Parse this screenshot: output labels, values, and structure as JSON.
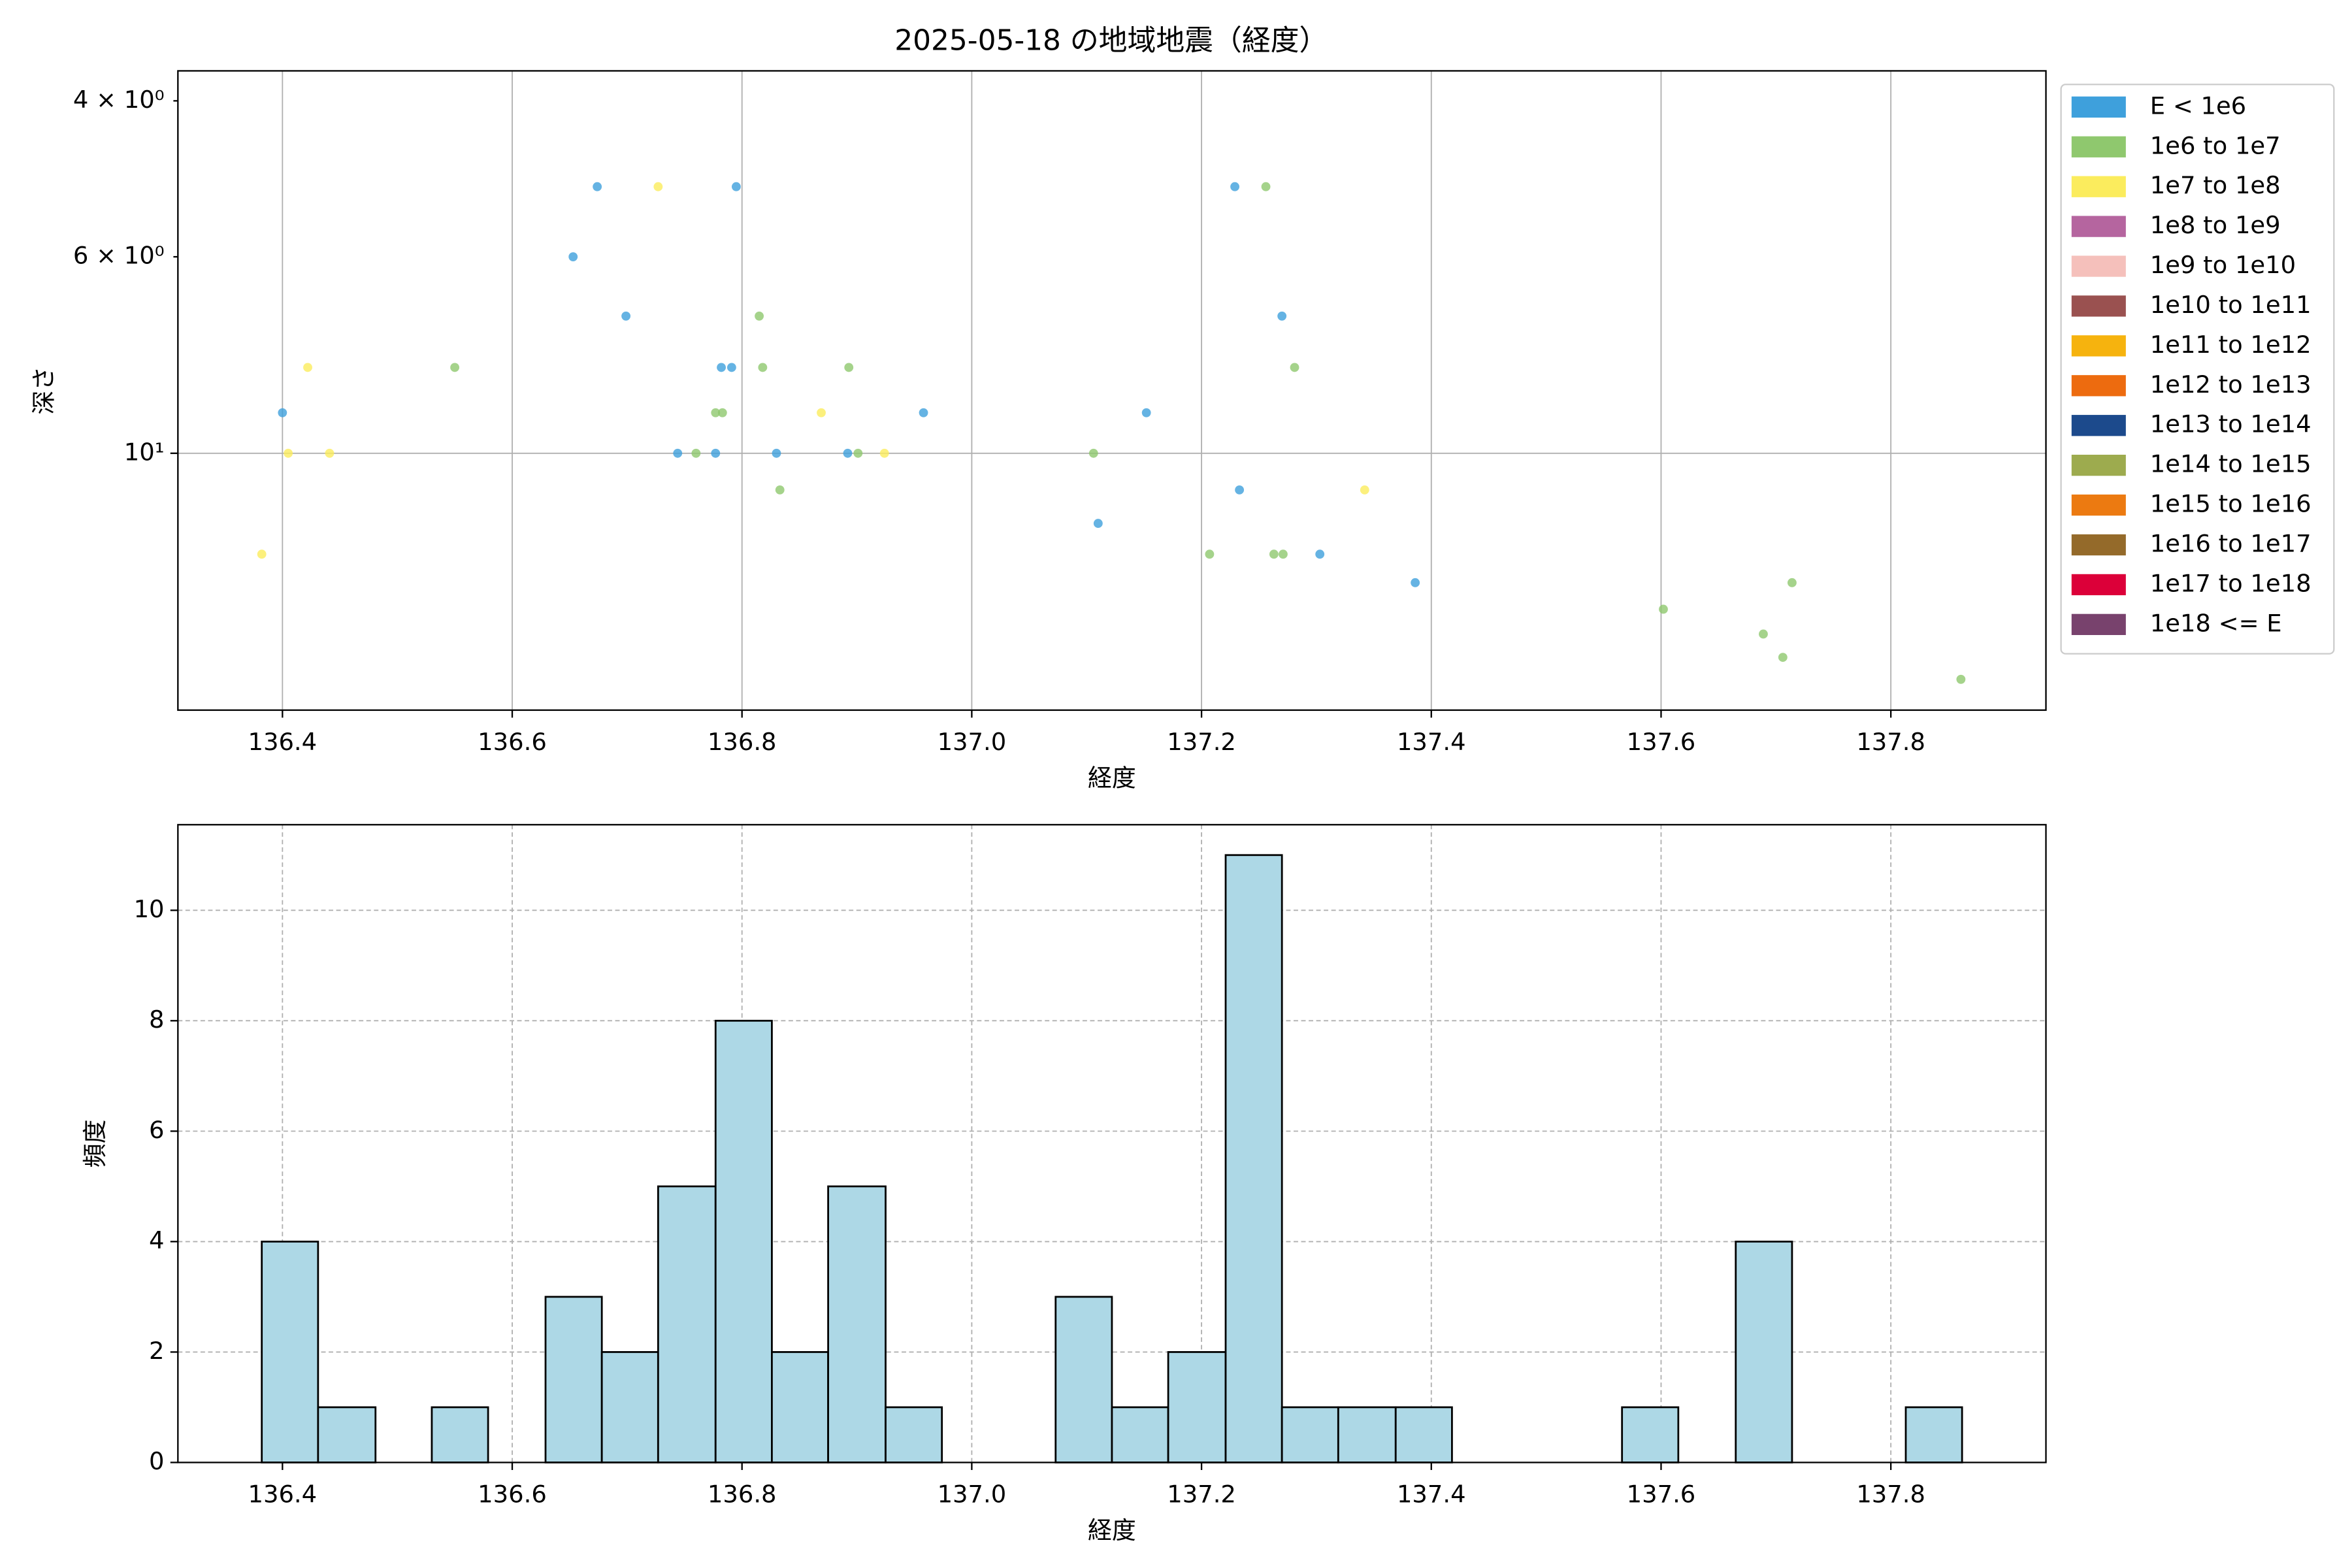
{
  "chart_data": [
    {
      "type": "scatter",
      "title": "2025-05-18 の地域地震（経度）",
      "x_label": "経度",
      "y_label": "深さ",
      "xlim": [
        136.309,
        137.935
      ],
      "xticks": [
        136.4,
        136.6,
        136.8,
        {
          "value": 137,
          "label": "137.0"
        },
        137.2,
        137.4,
        137.6,
        137.8
      ],
      "ylim": [
        19.5,
        3.7
      ],
      "y_scale": "log",
      "yticks": [
        {
          "value": 10,
          "label": "10¹"
        }
      ],
      "yminorticks": [
        {
          "value": 4,
          "label": "4 × 10⁰"
        },
        {
          "value": 6,
          "label": "6 × 10⁰"
        }
      ],
      "grid": true,
      "legend": "outside right",
      "series": [
        {
          "name": "E < 1e6",
          "color": "#3ea0dc",
          "x": [
            136.674,
            136.795,
            136.653,
            136.699,
            136.782,
            136.791,
            136.4,
            136.744,
            136.777,
            136.83,
            136.892,
            136.958,
            137.11,
            137.152,
            137.229,
            137.27,
            137.233,
            137.303,
            137.386
          ],
          "values": [
            5,
            5,
            6,
            7,
            8,
            8,
            9,
            10,
            10,
            10,
            10,
            9,
            12,
            9,
            5,
            7,
            11,
            13,
            14
          ]
        },
        {
          "name": "1e6 to 1e7",
          "color": "#8fc86e",
          "x": [
            136.55,
            136.76,
            136.777,
            136.783,
            136.815,
            136.818,
            136.833,
            136.893,
            136.901,
            137.106,
            137.256,
            137.281,
            137.207,
            137.263,
            137.271,
            137.602,
            137.689,
            137.706,
            137.714,
            137.861
          ],
          "values": [
            8,
            10,
            9,
            9,
            7,
            8,
            11,
            8,
            10,
            10,
            5,
            8,
            13,
            13,
            13,
            15,
            16,
            17,
            14,
            18
          ]
        },
        {
          "name": "1e7 to 1e8",
          "color": "#fbec5d",
          "x": [
            136.727,
            136.422,
            136.405,
            136.441,
            136.382,
            136.869,
            136.924,
            137.342
          ],
          "values": [
            5,
            8,
            10,
            10,
            13,
            9,
            10,
            11
          ]
        },
        {
          "name": "1e8 to 1e9",
          "color": "#b5659f",
          "x": [],
          "values": []
        },
        {
          "name": "1e9 to 1e10",
          "color": "#f5c0bb",
          "x": [],
          "values": []
        },
        {
          "name": "1e10 to 1e11",
          "color": "#9a5150",
          "x": [],
          "values": []
        },
        {
          "name": "1e11 to 1e12",
          "color": "#f6b30e",
          "x": [],
          "values": []
        },
        {
          "name": "1e12 to 1e13",
          "color": "#ed6b0f",
          "x": [],
          "values": []
        },
        {
          "name": "1e13 to 1e14",
          "color": "#1c4a8c",
          "x": [],
          "values": []
        },
        {
          "name": "1e14 to 1e15",
          "color": "#9dab4e",
          "x": [],
          "values": []
        },
        {
          "name": "1e15 to 1e16",
          "color": "#ec7a11",
          "x": [],
          "values": []
        },
        {
          "name": "1e16 to 1e17",
          "color": "#946a2a",
          "x": [],
          "values": []
        },
        {
          "name": "1e17 to 1e18",
          "color": "#dc0039",
          "x": [],
          "values": []
        },
        {
          "name": "1e18 <= E",
          "color": "#78426d",
          "x": [],
          "values": []
        }
      ]
    },
    {
      "type": "histogram",
      "x_label": "経度",
      "y_label": "頻度",
      "color": "#add8e6",
      "edge_color": "#000000",
      "xlim": [
        136.309,
        137.935
      ],
      "xticks": [
        136.4,
        136.6,
        136.8,
        {
          "value": 137,
          "label": "137.0"
        },
        137.2,
        137.4,
        137.6,
        137.8
      ],
      "ylim": [
        0,
        11.55
      ],
      "yticks": [
        0,
        2,
        4,
        6,
        8,
        10
      ],
      "grid": "dashed",
      "bins": [
        136.382,
        136.431,
        136.481,
        136.53,
        136.579,
        136.629,
        136.678,
        136.727,
        136.777,
        136.826,
        136.875,
        136.925,
        136.974,
        137.023,
        137.073,
        137.122,
        137.171,
        137.221,
        137.27,
        137.319,
        137.369,
        137.418,
        137.467,
        137.517,
        137.566,
        137.615,
        137.665,
        137.714,
        137.763,
        137.813,
        137.862
      ],
      "values": [
        4,
        1,
        0,
        1,
        0,
        3,
        2,
        5,
        8,
        2,
        5,
        1,
        0,
        0,
        3,
        1,
        2,
        11,
        1,
        1,
        1,
        0,
        0,
        0,
        1,
        0,
        4,
        0,
        0,
        1
      ]
    }
  ]
}
